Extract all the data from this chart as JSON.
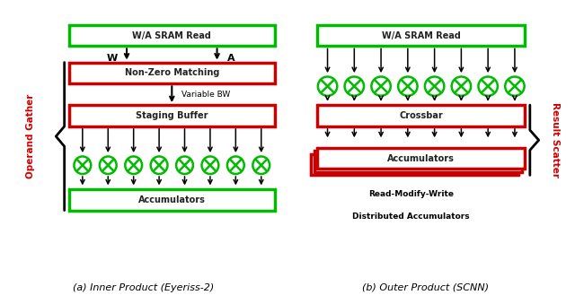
{
  "left_title": "W/A SRAM Read",
  "left_box1_label": "Non-Zero Matching",
  "left_box2_label": "Staging Buffer",
  "left_box3_label": "Accumulators",
  "left_label_W": "W",
  "left_label_A": "A",
  "left_var_bw": "Variable BW",
  "left_brace_label": "Operand Gather",
  "right_title": "W/A SRAM Read",
  "right_box1_label": "Crossbar",
  "right_box2_label": "Accumulators",
  "right_note1": "Read-Modify-Write",
  "right_note2": "Distributed Accumulators",
  "right_brace_label": "Result Scatter",
  "caption_left": "(a) Inner Product (Eyeriss-2)",
  "caption_right": "(b) Outer Product (SCNN)",
  "green": "#00bb00",
  "red": "#cc0000",
  "black": "#000000",
  "white": "#ffffff",
  "num_mults": 8,
  "fig_width": 6.4,
  "fig_height": 3.29,
  "dpi": 100
}
